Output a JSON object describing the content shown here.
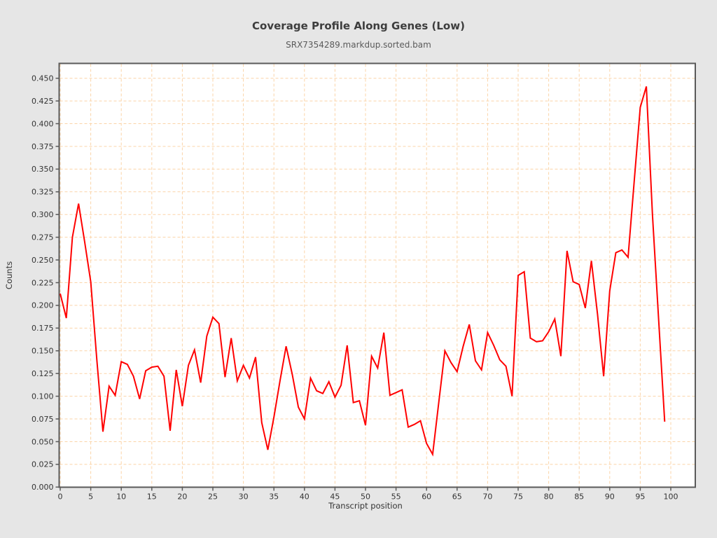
{
  "header": {
    "title": "Coverage Profile Along Genes (Low)",
    "subtitle": "SRX7354289.markdup.sorted.bam"
  },
  "chart_data": {
    "type": "line",
    "title": "Coverage Profile Along Genes (Low)",
    "subtitle": "SRX7354289.markdup.sorted.bam",
    "xlabel": "Transcript position",
    "ylabel": "Counts",
    "x_start": 0,
    "x_step": 1,
    "values": [
      0.213,
      0.186,
      0.275,
      0.312,
      0.27,
      0.226,
      0.14,
      0.061,
      0.111,
      0.101,
      0.138,
      0.135,
      0.122,
      0.097,
      0.128,
      0.132,
      0.133,
      0.122,
      0.062,
      0.129,
      0.089,
      0.134,
      0.151,
      0.115,
      0.166,
      0.187,
      0.18,
      0.121,
      0.164,
      0.117,
      0.134,
      0.12,
      0.143,
      0.071,
      0.041,
      0.077,
      0.117,
      0.155,
      0.124,
      0.088,
      0.075,
      0.12,
      0.106,
      0.103,
      0.116,
      0.099,
      0.112,
      0.156,
      0.093,
      0.095,
      0.068,
      0.144,
      0.131,
      0.17,
      0.101,
      0.104,
      0.107,
      0.066,
      0.069,
      0.073,
      0.048,
      0.036,
      0.093,
      0.15,
      0.137,
      0.127,
      0.155,
      0.179,
      0.139,
      0.129,
      0.17,
      0.156,
      0.14,
      0.133,
      0.1,
      0.233,
      0.237,
      0.164,
      0.16,
      0.161,
      0.171,
      0.185,
      0.144,
      0.26,
      0.226,
      0.223,
      0.197,
      0.249,
      0.19,
      0.122,
      0.216,
      0.258,
      0.261,
      0.253,
      0.336,
      0.418,
      0.441,
      0.3,
      0.185,
      0.072
    ],
    "x_ticks": [
      0,
      5,
      10,
      15,
      20,
      25,
      30,
      35,
      40,
      45,
      50,
      55,
      60,
      65,
      70,
      75,
      80,
      85,
      90,
      95,
      100
    ],
    "y_ticks": [
      0.0,
      0.025,
      0.05,
      0.075,
      0.1,
      0.125,
      0.15,
      0.175,
      0.2,
      0.225,
      0.25,
      0.275,
      0.3,
      0.325,
      0.35,
      0.375,
      0.4,
      0.425,
      0.45
    ],
    "y_tick_decimals": 3,
    "xlim": [
      0,
      104
    ],
    "ylim": [
      0,
      0.466
    ],
    "grid": "dashed",
    "legend": "none",
    "colors": {
      "line": "#ff0000",
      "grid": "#fbd4a8",
      "panel_background": "#ffffff",
      "page_background": "#e6e6e6",
      "panel_border": "#5a5a5a",
      "tick_text": "#333333",
      "title_text": "#3d3d3d",
      "subtitle_text": "#5a5a5a"
    }
  }
}
